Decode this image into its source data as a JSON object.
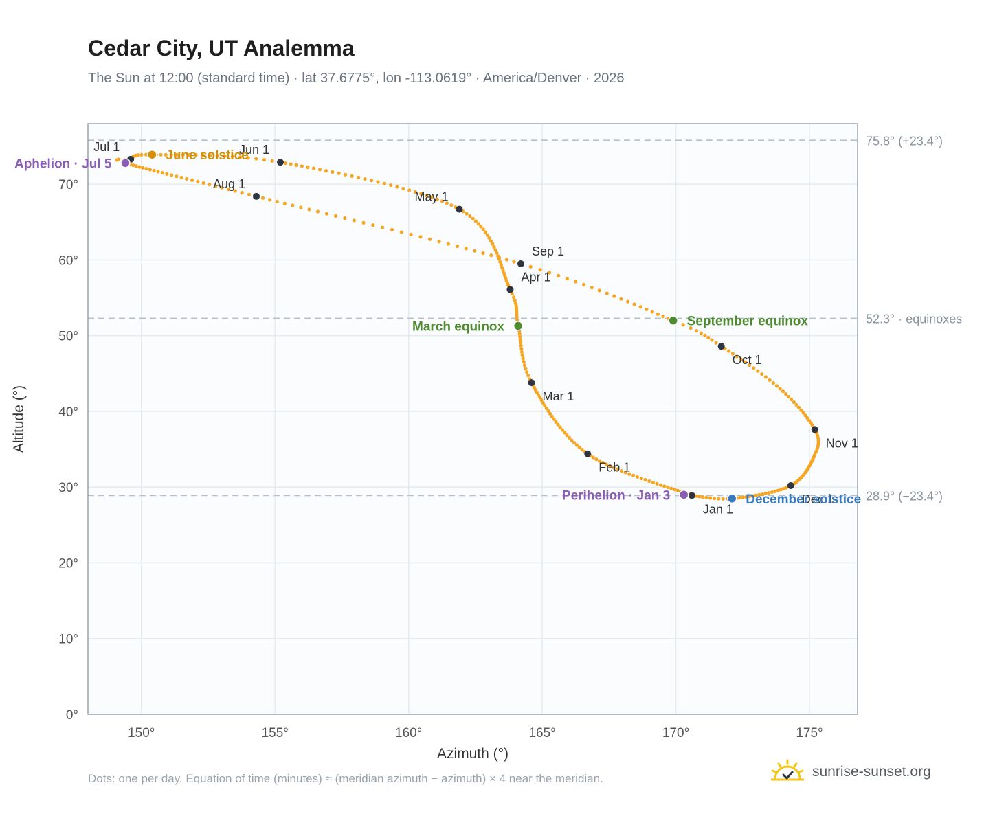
{
  "title": "Cedar City, UT Analemma",
  "subtitle": "The Sun at 12:00 (standard time) · lat 37.6775°, lon -113.0619° · America/Denver · 2026",
  "footnote": "Dots: one per day. Equation of time (minutes) ≈ (meridian azimuth − azimuth) × 4 near the meridian.",
  "brand": {
    "name": "sunrise-sunset.org",
    "icon": "sun-logo-icon"
  },
  "colors": {
    "path": "#f5a623",
    "month": "#2f3540",
    "solstice_june": "#d4900a",
    "solstice_december": "#3a7bbf",
    "equinox": "#4e8a2f",
    "apsis": "#8a5db4",
    "ref_line": "#b8c2cc",
    "grid": "#e6ebf0",
    "plot_bg": "#fafcfe",
    "frame": "#9aa6b2"
  },
  "chart_data": {
    "type": "scatter",
    "xlabel": "Azimuth (°)",
    "ylabel": "Altitude (°)",
    "xlim": [
      148,
      176.8
    ],
    "ylim": [
      0,
      78
    ],
    "x_ticks": [
      150,
      155,
      160,
      165,
      170,
      175
    ],
    "x_tick_labels": [
      "150°",
      "155°",
      "160°",
      "165°",
      "170°",
      "175°"
    ],
    "y_ticks": [
      0,
      10,
      20,
      30,
      40,
      50,
      60,
      70
    ],
    "y_tick_labels": [
      "0°",
      "10°",
      "20°",
      "30°",
      "40°",
      "50°",
      "60°",
      "70°"
    ],
    "grid": true,
    "series_description": "one dot per day",
    "anchors": [
      {
        "day": 1,
        "az": 170.6,
        "alt": 28.9
      },
      {
        "day": 32,
        "az": 166.7,
        "alt": 34.4
      },
      {
        "day": 60,
        "az": 164.6,
        "alt": 43.8
      },
      {
        "day": 78,
        "az": 164.1,
        "alt": 51.3
      },
      {
        "day": 91,
        "az": 163.8,
        "alt": 56.1
      },
      {
        "day": 121,
        "az": 161.9,
        "alt": 66.7
      },
      {
        "day": 152,
        "az": 155.2,
        "alt": 72.9
      },
      {
        "day": 171,
        "az": 150.4,
        "alt": 73.9
      },
      {
        "day": 182,
        "az": 149.6,
        "alt": 73.3
      },
      {
        "day": 186,
        "az": 149.4,
        "alt": 72.8
      },
      {
        "day": 213,
        "az": 154.3,
        "alt": 68.4
      },
      {
        "day": 244,
        "az": 164.2,
        "alt": 59.5
      },
      {
        "day": 265,
        "az": 169.9,
        "alt": 52.0
      },
      {
        "day": 274,
        "az": 171.7,
        "alt": 48.6
      },
      {
        "day": 289,
        "az": 173.9,
        "alt": 43.0
      },
      {
        "day": 305,
        "az": 175.2,
        "alt": 37.6
      },
      {
        "day": 315,
        "az": 175.2,
        "alt": 34.3
      },
      {
        "day": 335,
        "az": 174.3,
        "alt": 30.2
      },
      {
        "day": 355,
        "az": 172.1,
        "alt": 28.5
      },
      {
        "day": 366,
        "az": 170.6,
        "alt": 28.9
      }
    ],
    "month_markers": [
      {
        "label": "Jan 1",
        "az": 170.6,
        "alt": 28.9,
        "label_pos": "below-right"
      },
      {
        "label": "Feb 1",
        "az": 166.7,
        "alt": 34.4,
        "label_pos": "below-right"
      },
      {
        "label": "Mar 1",
        "az": 164.6,
        "alt": 43.8,
        "label_pos": "below-right"
      },
      {
        "label": "Apr 1",
        "az": 163.8,
        "alt": 56.1,
        "label_pos": "above-right"
      },
      {
        "label": "May 1",
        "az": 161.9,
        "alt": 66.7,
        "label_pos": "above-left"
      },
      {
        "label": "Jun 1",
        "az": 155.2,
        "alt": 72.9,
        "label_pos": "above-left"
      },
      {
        "label": "Jul 1",
        "az": 149.6,
        "alt": 73.3,
        "label_pos": "above-left"
      },
      {
        "label": "Aug 1",
        "az": 154.3,
        "alt": 68.4,
        "label_pos": "above-left"
      },
      {
        "label": "Sep 1",
        "az": 164.2,
        "alt": 59.5,
        "label_pos": "above-right"
      },
      {
        "label": "Oct 1",
        "az": 171.7,
        "alt": 48.6,
        "label_pos": "below-right"
      },
      {
        "label": "Nov 1",
        "az": 175.2,
        "alt": 37.6,
        "label_pos": "below-right"
      },
      {
        "label": "Dec 1",
        "az": 174.3,
        "alt": 30.2,
        "label_pos": "below-right"
      }
    ],
    "events": [
      {
        "label": "June solstice",
        "az": 150.4,
        "alt": 73.9,
        "kind": "solstice_june",
        "label_pos": "right"
      },
      {
        "label": "December solstice",
        "az": 172.1,
        "alt": 28.5,
        "kind": "solstice_december",
        "label_pos": "right"
      },
      {
        "label": "March equinox",
        "az": 164.1,
        "alt": 51.3,
        "kind": "equinox",
        "label_pos": "left"
      },
      {
        "label": "September equinox",
        "az": 169.9,
        "alt": 52.0,
        "kind": "equinox",
        "label_pos": "right"
      },
      {
        "label": "Aphelion · Jul 5",
        "az": 149.4,
        "alt": 72.8,
        "kind": "apsis",
        "label_pos": "left"
      },
      {
        "label": "Perihelion · Jan 3",
        "az": 170.3,
        "alt": 29.0,
        "kind": "apsis",
        "label_pos": "left"
      }
    ],
    "reference_lines": [
      {
        "alt": 75.8,
        "label": "75.8° (+23.4°)"
      },
      {
        "alt": 52.3,
        "label": "52.3° · equinoxes"
      },
      {
        "alt": 28.9,
        "label": "28.9° (−23.4°)"
      }
    ]
  }
}
